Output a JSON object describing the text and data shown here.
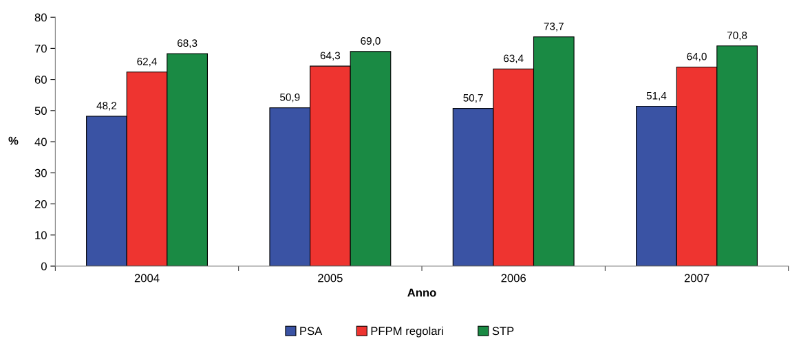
{
  "chart_data": {
    "type": "bar",
    "xlabel": "Anno",
    "ylabel": "%",
    "categories": [
      "2004",
      "2005",
      "2006",
      "2007"
    ],
    "series": [
      {
        "name": "PSA",
        "color": "#3a53a4",
        "values": [
          48.2,
          50.9,
          50.7,
          51.4
        ],
        "value_labels": [
          "48,2",
          "50,9",
          "50,7",
          "51,4"
        ]
      },
      {
        "name": "PFPM regolari",
        "color": "#ee3430",
        "values": [
          62.4,
          64.3,
          63.4,
          64.0
        ],
        "value_labels": [
          "62,4",
          "64,3",
          "63,4",
          "64,0"
        ]
      },
      {
        "name": "STP",
        "color": "#1a8a44",
        "values": [
          68.3,
          69.0,
          73.7,
          70.8
        ],
        "value_labels": [
          "68,3",
          "69,0",
          "73,7",
          "70,8"
        ]
      }
    ],
    "ylim": [
      0,
      80
    ],
    "yticks": [
      0,
      10,
      20,
      30,
      40,
      50,
      60,
      70,
      80
    ],
    "grid": false,
    "legend": "bottom"
  }
}
